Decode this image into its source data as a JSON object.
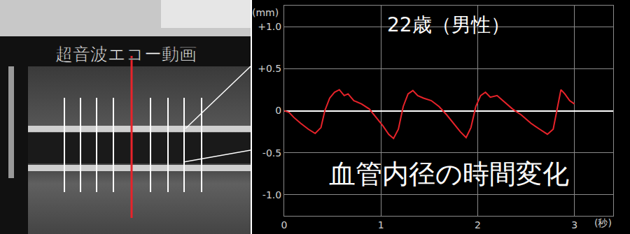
{
  "chart_data": {
    "type": "line",
    "title": "22歳（男性）",
    "x_label": "(秒)",
    "y_label": "(mm)",
    "annotations": [
      "血管内径の時間変化"
    ],
    "x": [
      0.0,
      0.05,
      0.1,
      0.17,
      0.25,
      0.32,
      0.38,
      0.42,
      0.47,
      0.52,
      0.57,
      0.62,
      0.66,
      0.72,
      0.8,
      0.88,
      0.95,
      1.02,
      1.08,
      1.13,
      1.18,
      1.23,
      1.28,
      1.33,
      1.38,
      1.44,
      1.52,
      1.6,
      1.68,
      1.75,
      1.82,
      1.88,
      1.93,
      1.98,
      2.03,
      2.08,
      2.13,
      2.2,
      2.28,
      2.36,
      2.45,
      2.55,
      2.64,
      2.72,
      2.78,
      2.82,
      2.86,
      2.9,
      2.95,
      3.0
    ],
    "values": [
      0.0,
      -0.02,
      -0.08,
      -0.15,
      -0.22,
      -0.27,
      -0.2,
      0.0,
      0.15,
      0.22,
      0.25,
      0.18,
      0.2,
      0.12,
      0.08,
      0.02,
      -0.08,
      -0.18,
      -0.28,
      -0.33,
      -0.22,
      0.05,
      0.2,
      0.24,
      0.18,
      0.15,
      0.12,
      0.05,
      -0.05,
      -0.15,
      -0.25,
      -0.32,
      -0.2,
      0.05,
      0.18,
      0.22,
      0.16,
      0.18,
      0.1,
      0.02,
      -0.05,
      -0.15,
      -0.22,
      -0.28,
      -0.22,
      0.0,
      0.25,
      0.2,
      0.12,
      0.08
    ],
    "color": "#e8232a",
    "xlim": [
      0,
      3.4
    ],
    "xticks": [
      0,
      1,
      2,
      3
    ],
    "ylim": [
      -1.25,
      1.25
    ],
    "yticks": [
      {
        "value": 1,
        "label": "+1.0"
      },
      {
        "value": 0.5,
        "label": "+0.5"
      },
      0,
      {
        "value": -0.5,
        "label": "-0.5"
      },
      {
        "value": -1,
        "label": "-1.0"
      }
    ],
    "grid": true
  },
  "image_panel": {
    "label": "超音波エコー動画"
  }
}
